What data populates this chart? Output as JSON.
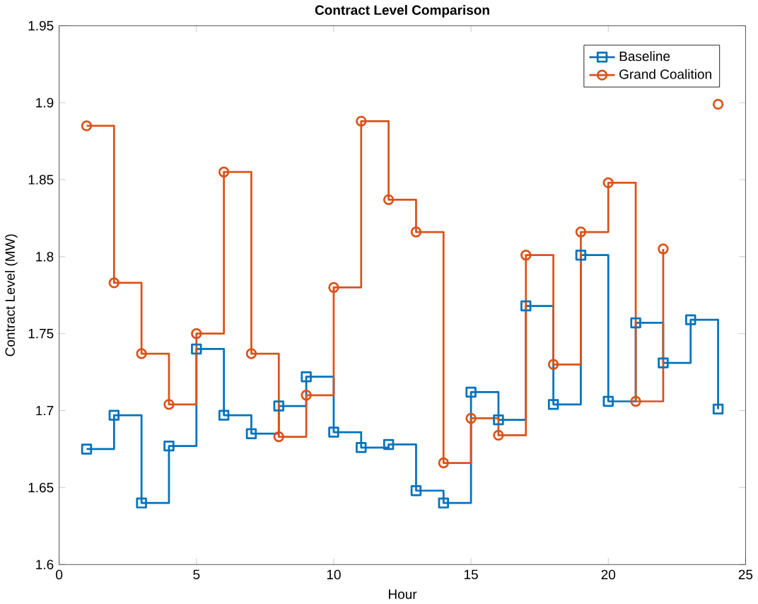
{
  "chart_data": {
    "type": "step",
    "title": "Contract Level Comparison",
    "xlabel": "Hour",
    "ylabel": "Contract Level (MW)",
    "x": [
      1,
      2,
      3,
      4,
      5,
      6,
      7,
      8,
      9,
      10,
      11,
      12,
      13,
      14,
      15,
      16,
      17,
      18,
      19,
      20,
      21,
      22,
      23,
      24
    ],
    "series": [
      {
        "name": "Baseline",
        "color": "#0072bd",
        "marker": "square",
        "values": [
          1.675,
          1.697,
          1.64,
          1.677,
          1.74,
          1.697,
          1.685,
          1.703,
          1.722,
          1.686,
          1.676,
          1.678,
          1.648,
          1.64,
          1.712,
          1.694,
          1.768,
          1.704,
          1.801,
          1.706,
          1.757,
          1.731,
          1.759,
          1.701
        ]
      },
      {
        "name": "Grand Coalition",
        "color": "#d95319",
        "marker": "circle",
        "values": [
          1.885,
          1.783,
          1.737,
          1.704,
          1.75,
          1.855,
          1.737,
          1.683,
          1.71,
          1.78,
          1.888,
          1.837,
          1.816,
          1.666,
          1.695,
          1.684,
          1.801,
          1.73,
          1.816,
          1.848,
          1.706,
          1.805,
          null,
          1.899
        ]
      }
    ],
    "xlim": [
      0,
      25
    ],
    "ylim": [
      1.6,
      1.95
    ],
    "xticks": [
      0,
      5,
      10,
      15,
      20,
      25
    ],
    "yticks": [
      1.6,
      1.65,
      1.7,
      1.75,
      1.8,
      1.85,
      1.9,
      1.95
    ],
    "legend": "top right",
    "grid": false,
    "line_style": "solid"
  }
}
